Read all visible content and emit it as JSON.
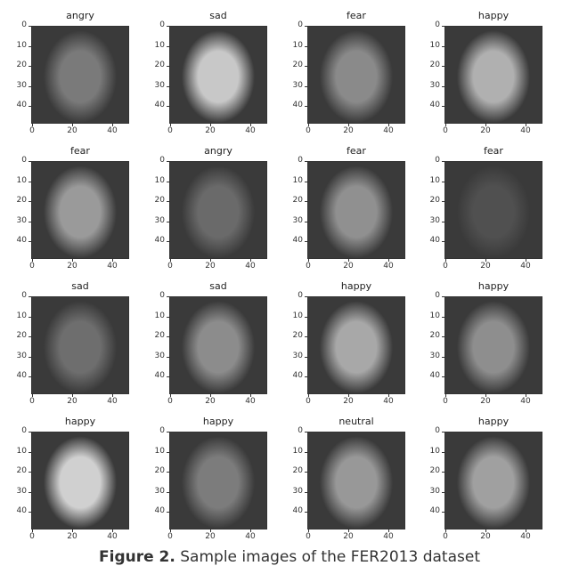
{
  "figure": {
    "panels": [
      {
        "label": "angry",
        "tone": "#7a7a7a"
      },
      {
        "label": "sad",
        "tone": "#c8c8c8"
      },
      {
        "label": "fear",
        "tone": "#8a8a8a"
      },
      {
        "label": "happy",
        "tone": "#b0b0b0"
      },
      {
        "label": "fear",
        "tone": "#9a9a9a"
      },
      {
        "label": "angry",
        "tone": "#6a6a6a"
      },
      {
        "label": "fear",
        "tone": "#909090"
      },
      {
        "label": "fear",
        "tone": "#505050"
      },
      {
        "label": "sad",
        "tone": "#6e6e6e"
      },
      {
        "label": "sad",
        "tone": "#8c8c8c"
      },
      {
        "label": "happy",
        "tone": "#a8a8a8"
      },
      {
        "label": "happy",
        "tone": "#8e8e8e"
      },
      {
        "label": "happy",
        "tone": "#d0d0d0"
      },
      {
        "label": "happy",
        "tone": "#7c7c7c"
      },
      {
        "label": "neutral",
        "tone": "#989898"
      },
      {
        "label": "happy",
        "tone": "#a0a0a0"
      }
    ],
    "y_ticks": [
      "0",
      "10",
      "20",
      "30",
      "40"
    ],
    "x_ticks": [
      "0",
      "20",
      "40"
    ]
  },
  "caption": {
    "label": "Figure 2.",
    "text": " Sample images of the FER2013 dataset"
  }
}
